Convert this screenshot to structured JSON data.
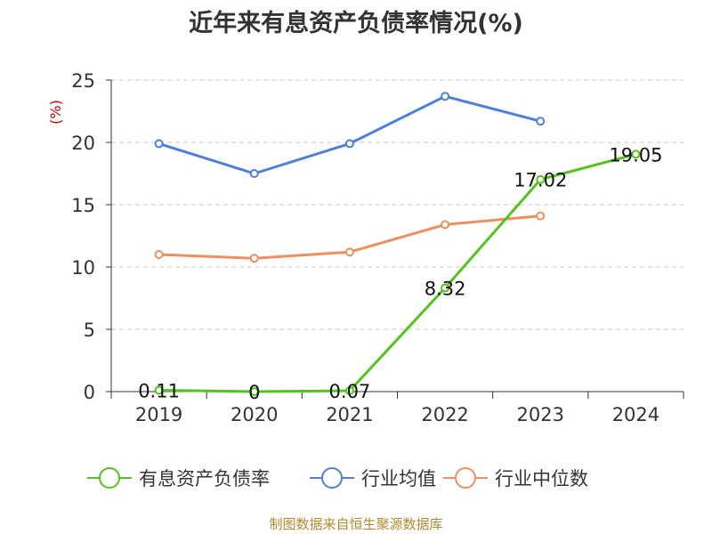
{
  "colors": {
    "debt_ratio": "#52c41a",
    "industry_mean": "#4e7fdc",
    "industry_median": "#f28e5b",
    "unit_label": "#cc0000",
    "source": "#b08a2e",
    "grid": "#c8c8c8",
    "axis": "#333333"
  },
  "chart_data": {
    "type": "line",
    "title": "近年来有息资产负债率情况(%)",
    "ylabel": "(%)",
    "xlabel": "",
    "categories": [
      "2019",
      "2020",
      "2021",
      "2022",
      "2023",
      "2024"
    ],
    "ylim": [
      0,
      25
    ],
    "yticks": [
      0,
      5,
      10,
      15,
      20,
      25
    ],
    "grid": "horizontal-dashed",
    "legend_position": "bottom",
    "series": [
      {
        "name": "有息资产负债率",
        "color_key": "debt_ratio",
        "values": [
          0.11,
          0,
          0.07,
          8.32,
          17.02,
          19.05
        ],
        "labels": [
          "0.11",
          "0",
          "0.07",
          "8.32",
          "17.02",
          "19.05"
        ]
      },
      {
        "name": "行业均值",
        "color_key": "industry_mean",
        "values": [
          19.9,
          17.5,
          19.9,
          23.7,
          21.7,
          null
        ]
      },
      {
        "name": "行业中位数",
        "color_key": "industry_median",
        "values": [
          11.0,
          10.7,
          11.2,
          13.4,
          14.1,
          null
        ]
      }
    ]
  },
  "footer": {
    "source": "制图数据来自恒生聚源数据库"
  }
}
